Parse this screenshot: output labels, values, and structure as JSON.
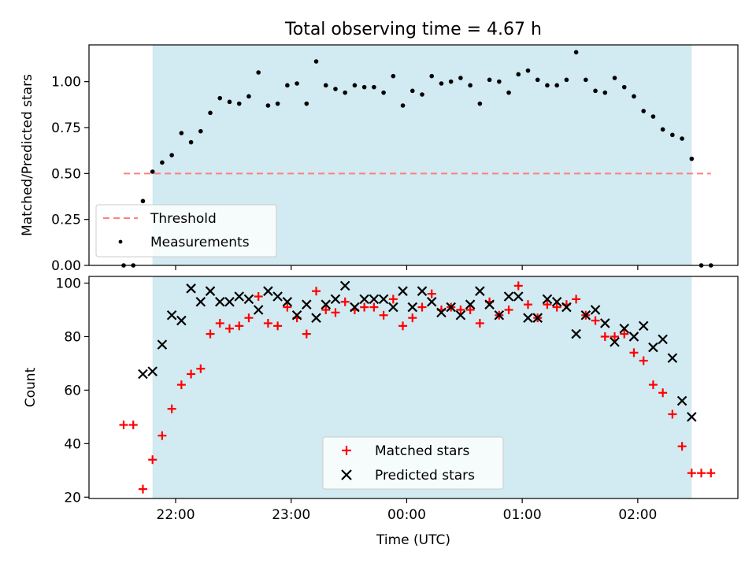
{
  "title": "Total observing time = 4.67 h",
  "xlabel": "Time (UTC)",
  "x_ticks": [
    "22:00",
    "23:00",
    "00:00",
    "01:00",
    "02:00"
  ],
  "chart_data": [
    {
      "type": "scatter",
      "ylabel": "Matched/Predicted stars",
      "ylim": [
        0,
        1.2
      ],
      "y_ticks": [
        "0.00",
        "0.25",
        "0.50",
        "0.75",
        "1.00"
      ],
      "observing_window": [
        "21:48",
        "02:28"
      ],
      "legend_position": "lower-left",
      "threshold": {
        "name": "Threshold",
        "value": 0.5,
        "x": [
          "21:33",
          "02:38"
        ],
        "color": "#ff7f7f"
      },
      "measurements": {
        "name": "Measurements",
        "color": "#000000",
        "points": [
          [
            "21:33",
            0.0
          ],
          [
            "21:38",
            0.0
          ],
          [
            "21:43",
            0.35
          ],
          [
            "21:48",
            0.51
          ],
          [
            "21:53",
            0.56
          ],
          [
            "21:58",
            0.6
          ],
          [
            "22:03",
            0.72
          ],
          [
            "22:08",
            0.67
          ],
          [
            "22:13",
            0.73
          ],
          [
            "22:18",
            0.83
          ],
          [
            "22:23",
            0.91
          ],
          [
            "22:28",
            0.89
          ],
          [
            "22:33",
            0.88
          ],
          [
            "22:38",
            0.92
          ],
          [
            "22:43",
            1.05
          ],
          [
            "22:48",
            0.87
          ],
          [
            "22:53",
            0.88
          ],
          [
            "22:58",
            0.98
          ],
          [
            "23:03",
            0.99
          ],
          [
            "23:08",
            0.88
          ],
          [
            "23:13",
            1.11
          ],
          [
            "23:18",
            0.98
          ],
          [
            "23:23",
            0.96
          ],
          [
            "23:28",
            0.94
          ],
          [
            "23:33",
            0.98
          ],
          [
            "23:38",
            0.97
          ],
          [
            "23:43",
            0.97
          ],
          [
            "23:48",
            0.94
          ],
          [
            "23:53",
            1.03
          ],
          [
            "23:58",
            0.87
          ],
          [
            "00:03",
            0.95
          ],
          [
            "00:08",
            0.93
          ],
          [
            "00:13",
            1.03
          ],
          [
            "00:18",
            0.99
          ],
          [
            "00:23",
            1.0
          ],
          [
            "00:28",
            1.02
          ],
          [
            "00:33",
            0.98
          ],
          [
            "00:38",
            0.88
          ],
          [
            "00:43",
            1.01
          ],
          [
            "00:48",
            1.0
          ],
          [
            "00:53",
            0.94
          ],
          [
            "00:58",
            1.04
          ],
          [
            "01:03",
            1.06
          ],
          [
            "01:08",
            1.01
          ],
          [
            "01:13",
            0.98
          ],
          [
            "01:18",
            0.98
          ],
          [
            "01:23",
            1.01
          ],
          [
            "01:28",
            1.16
          ],
          [
            "01:33",
            1.01
          ],
          [
            "01:38",
            0.95
          ],
          [
            "01:43",
            0.94
          ],
          [
            "01:48",
            1.02
          ],
          [
            "01:53",
            0.97
          ],
          [
            "01:58",
            0.92
          ],
          [
            "02:03",
            0.84
          ],
          [
            "02:08",
            0.81
          ],
          [
            "02:13",
            0.74
          ],
          [
            "02:18",
            0.71
          ],
          [
            "02:23",
            0.69
          ],
          [
            "02:28",
            0.58
          ],
          [
            "02:33",
            0.0
          ],
          [
            "02:38",
            0.0
          ]
        ]
      }
    },
    {
      "type": "scatter",
      "ylabel": "Count",
      "ylim": [
        19.5,
        102.5
      ],
      "y_ticks": [
        "20",
        "40",
        "60",
        "80",
        "100"
      ],
      "observing_window": [
        "21:48",
        "02:28"
      ],
      "legend_position": "lower-center",
      "series": [
        {
          "name": "Matched stars",
          "marker": "+",
          "color": "#ff0000",
          "points": [
            [
              "21:33",
              47
            ],
            [
              "21:38",
              47
            ],
            [
              "21:43",
              23
            ],
            [
              "21:48",
              34
            ],
            [
              "21:53",
              43
            ],
            [
              "21:58",
              53
            ],
            [
              "22:03",
              62
            ],
            [
              "22:08",
              66
            ],
            [
              "22:13",
              68
            ],
            [
              "22:18",
              81
            ],
            [
              "22:23",
              85
            ],
            [
              "22:28",
              83
            ],
            [
              "22:33",
              84
            ],
            [
              "22:38",
              87
            ],
            [
              "22:43",
              95
            ],
            [
              "22:48",
              85
            ],
            [
              "22:53",
              84
            ],
            [
              "22:58",
              91
            ],
            [
              "23:03",
              87
            ],
            [
              "23:08",
              81
            ],
            [
              "23:13",
              97
            ],
            [
              "23:18",
              90
            ],
            [
              "23:23",
              89
            ],
            [
              "23:28",
              93
            ],
            [
              "23:33",
              90
            ],
            [
              "23:38",
              91
            ],
            [
              "23:43",
              91
            ],
            [
              "23:48",
              88
            ],
            [
              "23:53",
              94
            ],
            [
              "23:58",
              84
            ],
            [
              "00:03",
              87
            ],
            [
              "00:08",
              91
            ],
            [
              "00:13",
              96
            ],
            [
              "00:18",
              90
            ],
            [
              "00:23",
              91
            ],
            [
              "00:28",
              90
            ],
            [
              "00:33",
              90
            ],
            [
              "00:38",
              85
            ],
            [
              "00:43",
              93
            ],
            [
              "00:48",
              88
            ],
            [
              "00:53",
              90
            ],
            [
              "00:58",
              99
            ],
            [
              "01:03",
              92
            ],
            [
              "01:08",
              87
            ],
            [
              "01:13",
              92
            ],
            [
              "01:18",
              91
            ],
            [
              "01:23",
              92
            ],
            [
              "01:28",
              94
            ],
            [
              "01:33",
              88
            ],
            [
              "01:38",
              86
            ],
            [
              "01:43",
              80
            ],
            [
              "01:48",
              80
            ],
            [
              "01:53",
              81
            ],
            [
              "01:58",
              74
            ],
            [
              "02:03",
              71
            ],
            [
              "02:08",
              62
            ],
            [
              "02:13",
              59
            ],
            [
              "02:18",
              51
            ],
            [
              "02:23",
              39
            ],
            [
              "02:28",
              29
            ],
            [
              "02:33",
              29
            ],
            [
              "02:38",
              29
            ]
          ]
        },
        {
          "name": "Predicted stars",
          "marker": "x",
          "color": "#000000",
          "points": [
            [
              "21:43",
              66
            ],
            [
              "21:48",
              67
            ],
            [
              "21:53",
              77
            ],
            [
              "21:58",
              88
            ],
            [
              "22:03",
              86
            ],
            [
              "22:08",
              98
            ],
            [
              "22:13",
              93
            ],
            [
              "22:18",
              97
            ],
            [
              "22:23",
              93
            ],
            [
              "22:28",
              93
            ],
            [
              "22:33",
              95
            ],
            [
              "22:38",
              94
            ],
            [
              "22:43",
              90
            ],
            [
              "22:48",
              97
            ],
            [
              "22:53",
              95
            ],
            [
              "22:58",
              93
            ],
            [
              "23:03",
              88
            ],
            [
              "23:08",
              92
            ],
            [
              "23:13",
              87
            ],
            [
              "23:18",
              92
            ],
            [
              "23:23",
              94
            ],
            [
              "23:28",
              99
            ],
            [
              "23:33",
              91
            ],
            [
              "23:38",
              94
            ],
            [
              "23:43",
              94
            ],
            [
              "23:48",
              94
            ],
            [
              "23:53",
              91
            ],
            [
              "23:58",
              97
            ],
            [
              "00:03",
              91
            ],
            [
              "00:08",
              97
            ],
            [
              "00:13",
              93
            ],
            [
              "00:18",
              89
            ],
            [
              "00:23",
              91
            ],
            [
              "00:28",
              88
            ],
            [
              "00:33",
              92
            ],
            [
              "00:38",
              97
            ],
            [
              "00:43",
              92
            ],
            [
              "00:48",
              88
            ],
            [
              "00:53",
              95
            ],
            [
              "00:58",
              95
            ],
            [
              "01:03",
              87
            ],
            [
              "01:08",
              87
            ],
            [
              "01:13",
              94
            ],
            [
              "01:18",
              93
            ],
            [
              "01:23",
              91
            ],
            [
              "01:28",
              81
            ],
            [
              "01:33",
              88
            ],
            [
              "01:38",
              90
            ],
            [
              "01:43",
              85
            ],
            [
              "01:48",
              78
            ],
            [
              "01:53",
              83
            ],
            [
              "01:58",
              80
            ],
            [
              "02:03",
              84
            ],
            [
              "02:08",
              76
            ],
            [
              "02:13",
              79
            ],
            [
              "02:18",
              72
            ],
            [
              "02:23",
              56
            ],
            [
              "02:28",
              50
            ]
          ]
        }
      ]
    }
  ],
  "colors": {
    "observing_shade": "#add8e6",
    "axes": "#000000",
    "background": "#ffffff"
  }
}
